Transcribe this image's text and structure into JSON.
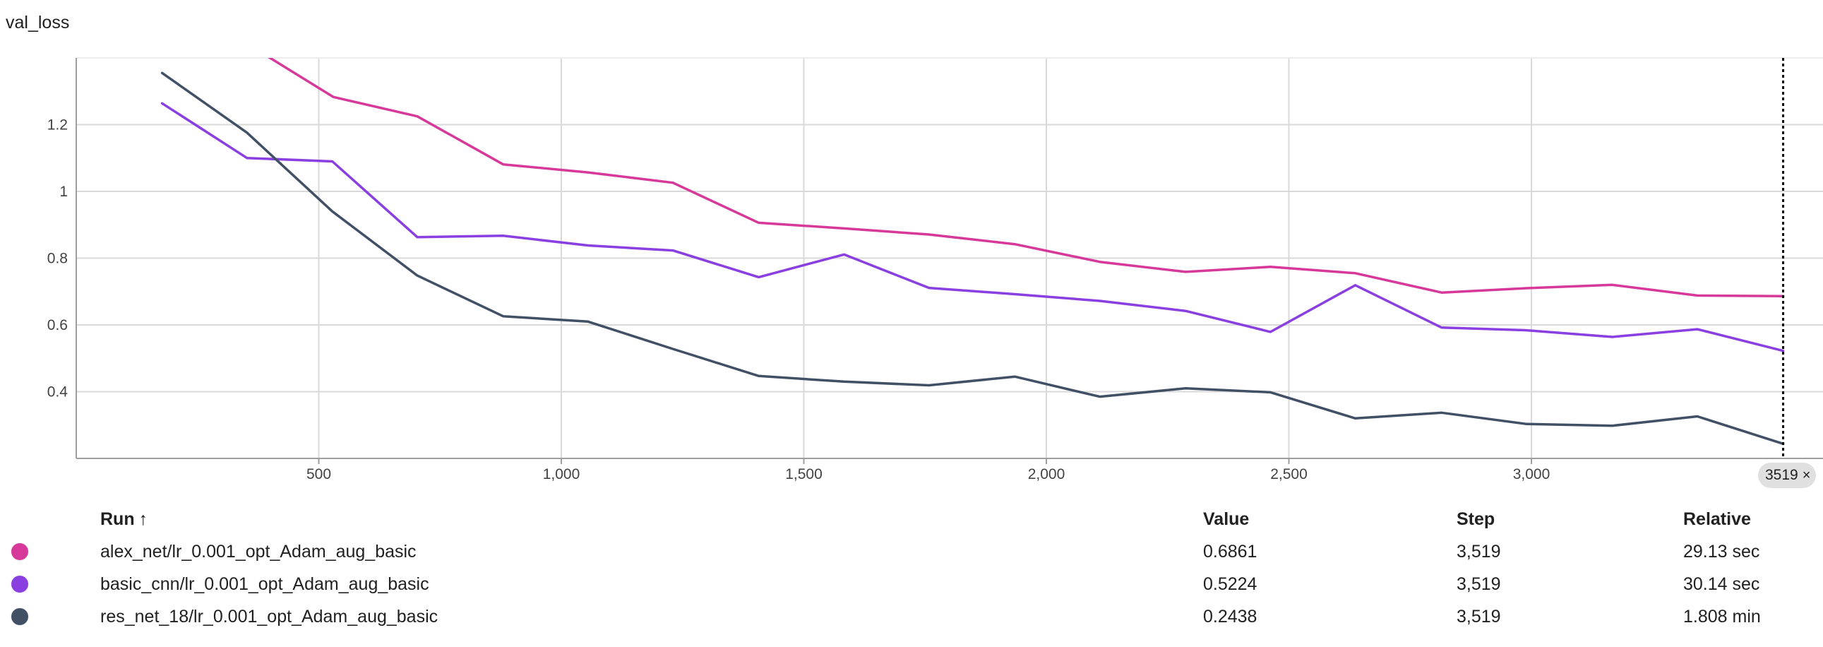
{
  "chart_data": {
    "type": "line",
    "title": "val_loss",
    "xlabel": "",
    "ylabel": "",
    "xlim": [
      0,
      3540
    ],
    "ylim": [
      0.2,
      1.4
    ],
    "xticks": [
      500,
      1000,
      1500,
      2000,
      2500,
      3000
    ],
    "xtick_labels": [
      "500",
      "1,000",
      "1,500",
      "2,000",
      "2,500",
      "3,000"
    ],
    "yticks": [
      0.4,
      0.6,
      0.8,
      1.0,
      1.2
    ],
    "ytick_labels": [
      "0.4",
      "0.6",
      "0.8",
      "1",
      "1.2"
    ],
    "grid": true,
    "cursor_step": 3519,
    "cursor_label": "3519",
    "series": [
      {
        "name": "alex_net/lr_0.001_opt_Adam_aug_basic",
        "color": "#d6399a",
        "x": [
          395,
          530,
          703,
          880,
          1055,
          1230,
          1407,
          1583,
          1758,
          1935,
          2110,
          2287,
          2462,
          2637,
          2815,
          2990,
          3167,
          3342,
          3519
        ],
        "y": [
          1.404,
          1.283,
          1.225,
          1.081,
          1.057,
          1.026,
          0.906,
          0.889,
          0.871,
          0.842,
          0.789,
          0.759,
          0.774,
          0.755,
          0.697,
          0.71,
          0.72,
          0.688,
          0.6861
        ]
      },
      {
        "name": "basic_cnn/lr_0.001_opt_Adam_aug_basic",
        "color": "#8a3fe0",
        "x": [
          177,
          352,
          528,
          703,
          880,
          1055,
          1230,
          1407,
          1583,
          1758,
          1935,
          2110,
          2287,
          2462,
          2637,
          2815,
          2990,
          3167,
          3342,
          3519
        ],
        "y": [
          1.264,
          1.1,
          1.09,
          0.863,
          0.867,
          0.838,
          0.823,
          0.743,
          0.811,
          0.711,
          0.692,
          0.672,
          0.642,
          0.579,
          0.719,
          0.592,
          0.584,
          0.564,
          0.587,
          0.5224
        ]
      },
      {
        "name": "res_net_18/lr_0.001_opt_Adam_aug_basic",
        "color": "#425066",
        "x": [
          177,
          352,
          528,
          703,
          880,
          1055,
          1230,
          1407,
          1583,
          1758,
          1935,
          2110,
          2287,
          2462,
          2637,
          2815,
          2990,
          3167,
          3342,
          3519
        ],
        "y": [
          1.355,
          1.176,
          0.94,
          0.748,
          0.626,
          0.61,
          0.528,
          0.447,
          0.43,
          0.419,
          0.445,
          0.385,
          0.41,
          0.398,
          0.32,
          0.337,
          0.303,
          0.298,
          0.326,
          0.2438
        ]
      }
    ]
  },
  "table": {
    "headers": {
      "run": "Run",
      "sort_icon": "↑",
      "value": "Value",
      "step": "Step",
      "relative": "Relative"
    },
    "rows": [
      {
        "swatch_color": "#d6399a",
        "run": "alex_net/lr_0.001_opt_Adam_aug_basic",
        "value": "0.6861",
        "step": "3,519",
        "relative": "29.13 sec"
      },
      {
        "swatch_color": "#8a3fe0",
        "run": "basic_cnn/lr_0.001_opt_Adam_aug_basic",
        "value": "0.5224",
        "step": "3,519",
        "relative": "30.14 sec"
      },
      {
        "swatch_color": "#425066",
        "run": "res_net_18/lr_0.001_opt_Adam_aug_basic",
        "value": "0.2438",
        "step": "3,519",
        "relative": "1.808 min"
      }
    ]
  },
  "chip": {
    "close_icon": "×"
  }
}
